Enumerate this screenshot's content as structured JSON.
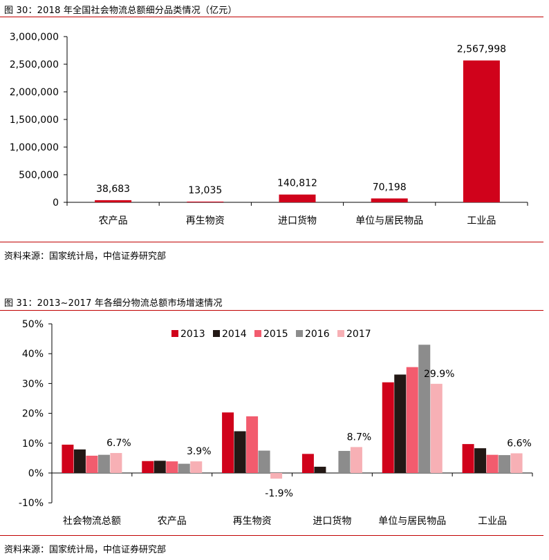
{
  "figure30": {
    "title": "图 30：2018 年全国社会物流总额细分品类情况（亿元）",
    "source": "资料来源：国家统计局，中信证券研究部"
  },
  "figure31": {
    "title": "图 31：2013~2017 年各细分物流总额市场增速情况",
    "source": "资料来源：国家统计局，中信证券研究部"
  },
  "colors": {
    "rule": "#c00000",
    "bar30": "#d0021b",
    "s2013": "#d0021b",
    "s2014": "#231815",
    "s2015": "#f25c6e",
    "s2016": "#8c8c8c",
    "s2017": "#f7b0b5"
  },
  "chart_data": [
    {
      "type": "bar",
      "title": "图 30：2018 年全国社会物流总额细分品类情况（亿元）",
      "categories": [
        "农产品",
        "再生物资",
        "进口货物",
        "单位与居民物品",
        "工业品"
      ],
      "values": [
        38683,
        13035,
        140812,
        70198,
        2567998
      ],
      "value_labels": [
        "38,683",
        "13,035",
        "140,812",
        "70,198",
        "2,567,998"
      ],
      "ylim": [
        0,
        3000000
      ],
      "yticks": [
        "0",
        "500,000",
        "1,000,000",
        "1,500,000",
        "2,000,000",
        "2,500,000",
        "3,000,000"
      ],
      "ytick_values": [
        0,
        500000,
        1000000,
        1500000,
        2000000,
        2500000,
        3000000
      ],
      "grid": false,
      "legend": "none"
    },
    {
      "type": "bar",
      "title": "图 31：2013~2017 年各细分物流总额市场增速情况",
      "categories": [
        "社会物流总额",
        "农产品",
        "再生物资",
        "进口货物",
        "单位与居民物品",
        "工业品"
      ],
      "series": [
        {
          "name": "2013",
          "values": [
            9.5,
            4.0,
            20.3,
            6.4,
            30.4,
            9.7
          ]
        },
        {
          "name": "2014",
          "values": [
            7.9,
            4.1,
            14.0,
            2.1,
            33.0,
            8.3
          ]
        },
        {
          "name": "2015",
          "values": [
            5.8,
            3.9,
            19.0,
            0.0,
            35.5,
            6.1
          ]
        },
        {
          "name": "2016",
          "values": [
            6.1,
            3.1,
            7.5,
            7.4,
            43.0,
            6.0
          ]
        },
        {
          "name": "2017",
          "values": [
            6.7,
            3.9,
            -1.9,
            8.7,
            29.9,
            6.6
          ]
        }
      ],
      "value_labels_2017": [
        "6.7%",
        "3.9%",
        "-1.9%",
        "8.7%",
        "29.9%",
        "6.6%"
      ],
      "ylim": [
        -10,
        50
      ],
      "yticks": [
        "-10%",
        "0%",
        "10%",
        "20%",
        "30%",
        "40%",
        "50%"
      ],
      "ytick_values": [
        -10,
        0,
        10,
        20,
        30,
        40,
        50
      ],
      "grid": false,
      "legend": "top-center"
    }
  ]
}
